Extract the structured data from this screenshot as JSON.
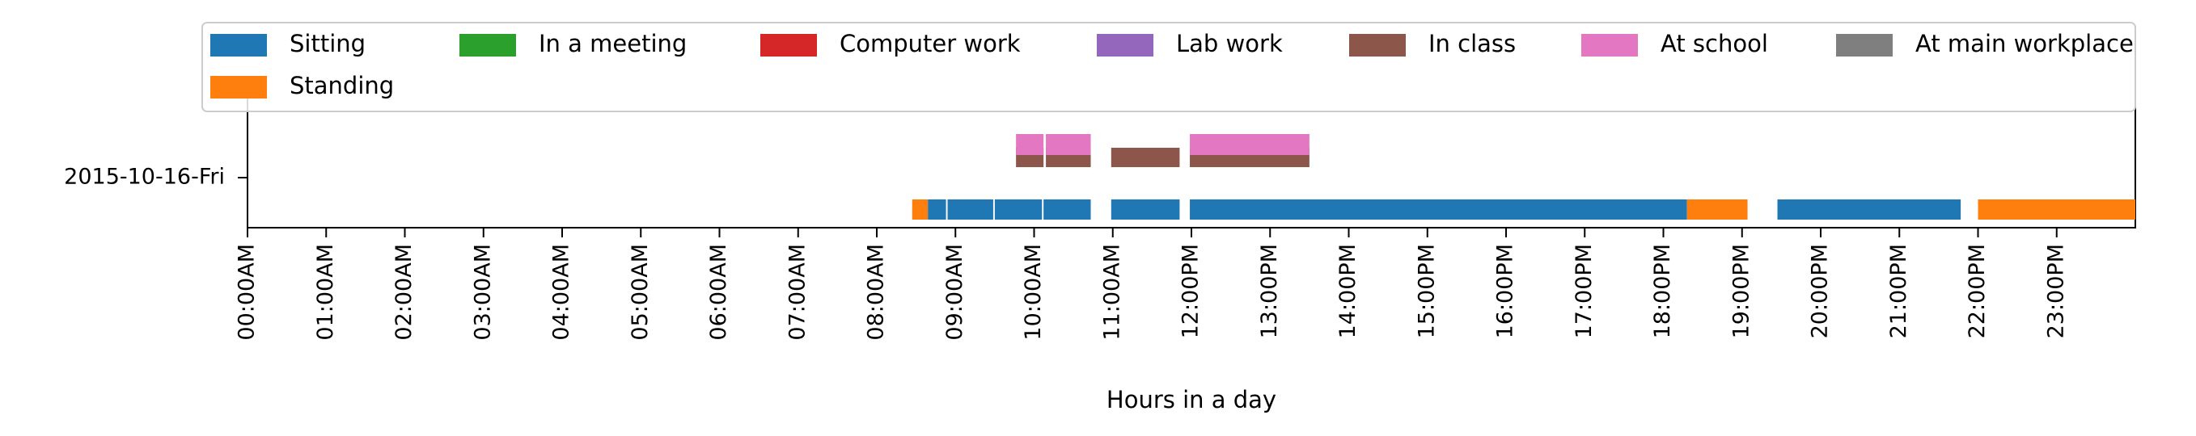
{
  "chart_data": {
    "type": "timeline",
    "xlabel": "Hours in a day",
    "ylabel": "",
    "row_label": "2015-10-16-Fri",
    "xlim": [
      0,
      24
    ],
    "grid": false,
    "legend_placement": "top",
    "ticks": [
      "00:00AM",
      "01:00AM",
      "02:00AM",
      "03:00AM",
      "04:00AM",
      "05:00AM",
      "06:00AM",
      "07:00AM",
      "08:00AM",
      "09:00AM",
      "10:00AM",
      "11:00AM",
      "12:00PM",
      "13:00PM",
      "14:00PM",
      "15:00PM",
      "16:00PM",
      "17:00PM",
      "18:00PM",
      "19:00PM",
      "20:00PM",
      "21:00PM",
      "22:00PM",
      "23:00PM"
    ],
    "categories": [
      {
        "name": "Sitting",
        "color": "#1f77b4"
      },
      {
        "name": "Standing",
        "color": "#ff7f0e"
      },
      {
        "name": "In a meeting",
        "color": "#2ca02c"
      },
      {
        "name": "Computer work",
        "color": "#d62728"
      },
      {
        "name": "Lab work",
        "color": "#9467bd"
      },
      {
        "name": "In class",
        "color": "#8c564b"
      },
      {
        "name": "At school",
        "color": "#e377c2"
      },
      {
        "name": "At main workplace",
        "color": "#7f7f7f"
      }
    ],
    "legend_order": [
      "Sitting",
      "In a meeting",
      "Computer work",
      "Lab work",
      "In class",
      "At school",
      "At main workplace",
      "Standing"
    ],
    "lane_order": [
      "Standing",
      "Sitting",
      "In a meeting",
      "Computer work",
      "Lab work",
      "In class",
      "At school",
      "At main workplace"
    ],
    "segments": [
      {
        "category": "Standing",
        "start": 8.45,
        "end": 8.65
      },
      {
        "category": "Sitting",
        "start": 8.65,
        "end": 8.88
      },
      {
        "category": "Sitting",
        "start": 8.9,
        "end": 9.48
      },
      {
        "category": "Sitting",
        "start": 9.5,
        "end": 10.1
      },
      {
        "category": "Sitting",
        "start": 10.12,
        "end": 10.72
      },
      {
        "category": "Sitting",
        "start": 10.98,
        "end": 11.85
      },
      {
        "category": "Sitting",
        "start": 11.98,
        "end": 18.3
      },
      {
        "category": "Standing",
        "start": 18.3,
        "end": 19.07
      },
      {
        "category": "Sitting",
        "start": 19.45,
        "end": 21.78
      },
      {
        "category": "Standing",
        "start": 22.0,
        "end": 24.0
      },
      {
        "category": "In class",
        "start": 9.77,
        "end": 10.12
      },
      {
        "category": "In class",
        "start": 10.15,
        "end": 10.72
      },
      {
        "category": "In class",
        "start": 10.98,
        "end": 11.85
      },
      {
        "category": "In class",
        "start": 11.98,
        "end": 13.5
      },
      {
        "category": "At school",
        "start": 9.77,
        "end": 10.12
      },
      {
        "category": "At school",
        "start": 10.15,
        "end": 10.72
      },
      {
        "category": "At school",
        "start": 11.98,
        "end": 13.5
      }
    ]
  }
}
